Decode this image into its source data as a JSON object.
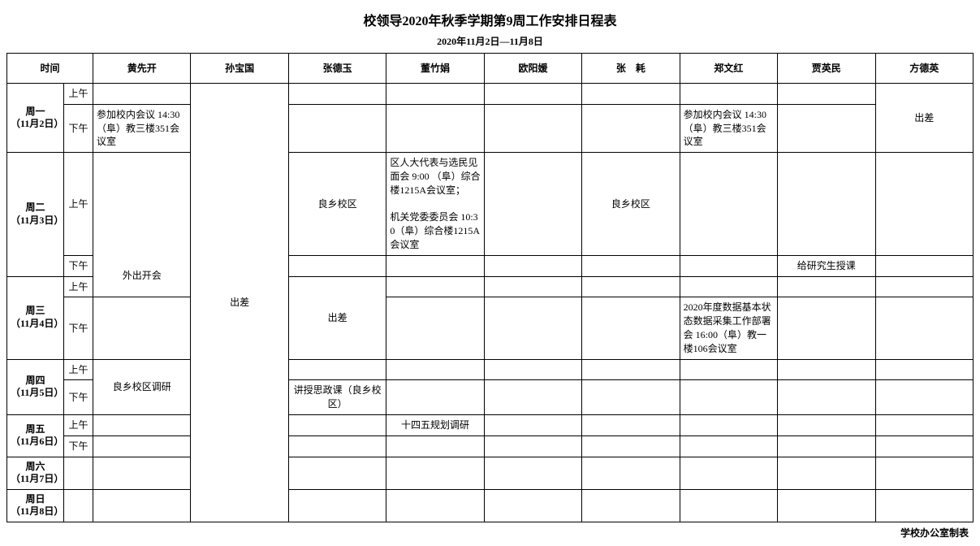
{
  "title": "校领导2020年秋季学期第9周工作安排日程表",
  "date_range": "2020年11月2日—11月8日",
  "time_header": "时间",
  "people": [
    "黄先开",
    "孙宝国",
    "张德玉",
    "董竹娟",
    "欧阳媛",
    "张　耗",
    "郑文红",
    "贾英民",
    "方德英"
  ],
  "ampm": {
    "am": "上午",
    "pm": "下午"
  },
  "days": {
    "mon": {
      "label_line1": "周一",
      "label_line2": "（11月2日）"
    },
    "tue": {
      "label_line1": "周二",
      "label_line2": "（11月3日）"
    },
    "wed": {
      "label_line1": "周三",
      "label_line2": "（11月4日）"
    },
    "thu": {
      "label_line1": "周四",
      "label_line2": "（11月5日）"
    },
    "fri": {
      "label_line1": "周五",
      "label_line2": "（11月6日）"
    },
    "sat": {
      "label_line1": "周六",
      "label_line2": "（11月7日）"
    },
    "sun": {
      "label_line1": "周日",
      "label_line2": "（11月8日）"
    }
  },
  "cells": {
    "mon_pm_p0": "参加校内会议 14:30 （阜）教三楼351会议室",
    "sun_merge_p1": "出差",
    "mon_pm_p6": "参加校内会议 14:30 （阜）教三楼351会议室",
    "mon_merge_p8": "出差",
    "tue_am_p2": "良乡校区",
    "tue_am_p3": "区人大代表与选民见面会 9:00 （阜）综合楼1215A会议室；\n\n机关党委委员会 10:30（阜）综合楼1215A会议室",
    "tue_am_p5": "良乡校区",
    "tue_pm_p7": "给研究生授课",
    "tue_wed_p0": "外出开会",
    "wed_merge_p2": "出差",
    "wed_pm_p6": "2020年度数据基本状态数据采集工作部署会 16:00（阜）教一楼106会议室",
    "thu_merge_p0": "良乡校区调研",
    "thu_pm_p2": "讲授思政课（良乡校区）",
    "fri_am_p3": "十四五规划调研"
  },
  "footer": "学校办公室制表"
}
